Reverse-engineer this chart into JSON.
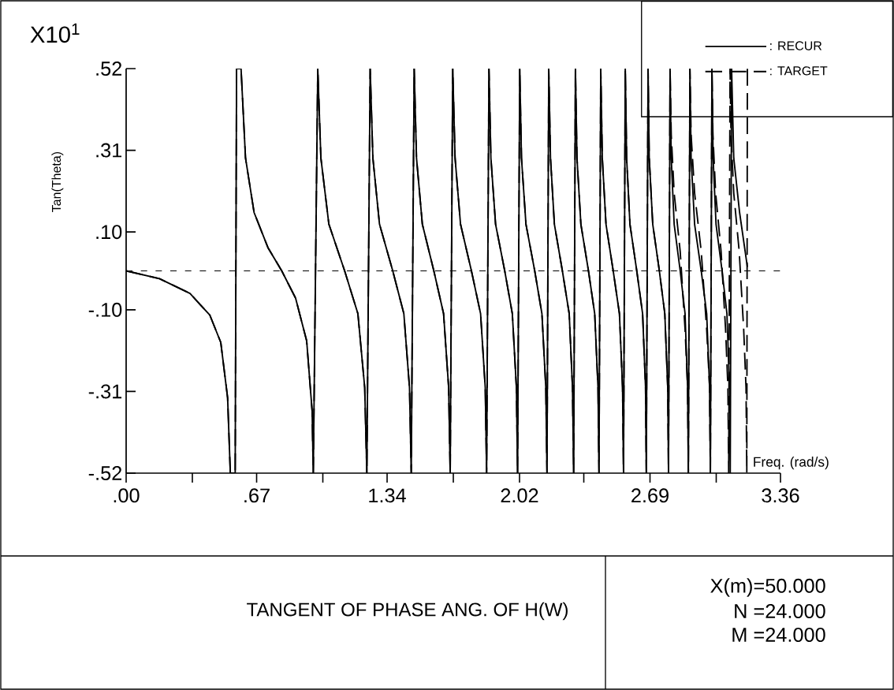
{
  "chart_data": {
    "type": "line",
    "title": "TANGENT OF PHASE ANG. OF H(W)",
    "xlabel": "Freq. (rad/s)",
    "ylabel": "Tan(Theta)",
    "annotations": [
      "X10$^{1}$",
      "X(m)=50.000",
      "N =24.000",
      "M =24.000"
    ],
    "xlim": [
      0,
      3.36
    ],
    "ylim": [
      -0.52,
      0.52
    ],
    "xticks": [
      {
        "value": 0,
        "label": ".00"
      },
      {
        "value": 0.34,
        "label": null
      },
      {
        "value": 0.67,
        "label": ".67"
      },
      {
        "value": 1.01,
        "label": null
      },
      {
        "value": 1.34,
        "label": "1.34"
      },
      {
        "value": 1.68,
        "label": null
      },
      {
        "value": 2.02,
        "label": "2.02"
      },
      {
        "value": 2.35,
        "label": null
      },
      {
        "value": 2.69,
        "label": "2.69"
      },
      {
        "value": 3.03,
        "label": null
      },
      {
        "value": 3.36,
        "label": "3.36"
      }
    ],
    "yticks": [
      {
        "value": -0.52,
        "label": "-.52"
      },
      {
        "value": -0.31,
        "label": "-.31"
      },
      {
        "value": -0.1,
        "label": "-.10"
      },
      {
        "value": 0.1,
        "label": ".10"
      },
      {
        "value": 0.31,
        "label": ".31"
      },
      {
        "value": 0.52,
        "label": ".52"
      }
    ],
    "ref_lines": [
      {
        "axis": "y",
        "value": 0,
        "line_style": "dashed",
        "color": "#000000"
      }
    ],
    "legend": "top right",
    "marker": "none",
    "series": [
      {
        "name": ": RECUR",
        "color": "#000000",
        "line_style": "solid",
        "x": [
          0,
          0.171,
          0.328,
          0.43,
          0.486,
          0.521,
          0.535,
          0.56,
          0.567,
          0.59,
          0.613,
          0.657,
          0.728,
          0.799,
          0.87,
          0.927,
          0.955,
          0.961,
          0.984,
          1.0,
          1.041,
          1.122,
          1.19,
          1.225,
          1.236,
          1.253,
          1.267,
          1.301,
          1.369,
          1.426,
          1.455,
          1.464,
          1.479,
          1.491,
          1.521,
          1.58,
          1.63,
          1.656,
          1.664,
          1.677,
          1.689,
          1.717,
          1.773,
          1.82,
          1.844,
          1.851,
          1.863,
          1.873,
          1.897,
          1.944,
          1.983,
          2.004,
          2.01,
          2.021,
          2.03,
          2.053,
          2.098,
          2.135,
          2.155,
          2.161,
          2.17,
          2.179,
          2.199,
          2.24,
          2.275,
          2.292,
          2.298,
          2.307,
          2.315,
          2.335,
          2.374,
          2.406,
          2.423,
          2.428,
          2.437,
          2.445,
          2.464,
          2.501,
          2.533,
          2.549,
          2.554,
          2.563,
          2.57,
          2.587,
          2.622,
          2.652,
          2.667,
          2.671,
          2.68,
          2.686,
          2.704,
          2.738,
          2.766,
          2.781,
          2.785,
          2.793,
          2.799,
          2.814,
          2.845,
          2.87,
          2.883,
          2.887,
          2.895,
          2.901,
          2.919,
          2.953,
          2.981,
          2.996,
          3.0,
          3.008,
          3.014,
          3.029,
          3.06,
          3.085,
          3.098,
          3.102,
          3.109,
          3.12,
          3.15,
          3.19
        ],
        "values": [
          0,
          -0.02,
          -0.058,
          -0.114,
          -0.184,
          -0.326,
          -0.52,
          -0.52,
          0.52,
          0.52,
          0.29,
          0.15,
          0.06,
          0,
          -0.07,
          -0.18,
          -0.36,
          -0.52,
          0.52,
          0.29,
          0.12,
          0,
          -0.11,
          -0.3,
          -0.52,
          0.52,
          0.29,
          0.12,
          0,
          -0.11,
          -0.3,
          -0.52,
          0.52,
          0.29,
          0.12,
          0,
          -0.11,
          -0.3,
          -0.52,
          0.52,
          0.29,
          0.12,
          0,
          -0.11,
          -0.3,
          -0.52,
          0.52,
          0.29,
          0.12,
          0,
          -0.11,
          -0.3,
          -0.52,
          0.52,
          0.29,
          0.12,
          0,
          -0.11,
          -0.3,
          -0.52,
          0.52,
          0.29,
          0.12,
          0,
          -0.11,
          -0.3,
          -0.52,
          0.52,
          0.29,
          0.12,
          0,
          -0.11,
          -0.3,
          -0.52,
          0.52,
          0.29,
          0.12,
          0,
          -0.11,
          -0.3,
          -0.52,
          0.52,
          0.29,
          0.12,
          0,
          -0.11,
          -0.3,
          -0.52,
          0.52,
          0.29,
          0.12,
          0,
          -0.11,
          -0.3,
          -0.52,
          0.52,
          0.29,
          0.12,
          0,
          -0.11,
          -0.3,
          -0.52,
          0.52,
          0.29,
          0.12,
          0,
          -0.11,
          -0.3,
          -0.52,
          0.52,
          0.29,
          0.12,
          0,
          -0.11,
          -0.3,
          -0.52,
          0.52,
          0.29,
          0.15,
          0.01
        ]
      },
      {
        "name": ": TARGET",
        "color": "#000000",
        "line_style": "dashed",
        "x": [
          0,
          0.171,
          0.328,
          0.43,
          0.486,
          0.521,
          0.535,
          0.56,
          0.567,
          0.59,
          0.613,
          0.657,
          0.728,
          0.799,
          0.87,
          0.927,
          0.955,
          0.961,
          0.984,
          1.0,
          1.041,
          1.122,
          1.19,
          1.225,
          1.236,
          1.253,
          1.267,
          1.301,
          1.369,
          1.426,
          1.455,
          1.464,
          1.479,
          1.491,
          1.521,
          1.58,
          1.63,
          1.656,
          1.664,
          1.677,
          1.689,
          1.717,
          1.773,
          1.82,
          1.844,
          1.851,
          1.863,
          1.873,
          1.897,
          1.944,
          1.983,
          2.004,
          2.01,
          2.021,
          2.03,
          2.053,
          2.098,
          2.135,
          2.155,
          2.161,
          2.17,
          2.179,
          2.199,
          2.24,
          2.275,
          2.292,
          2.298,
          2.307,
          2.315,
          2.335,
          2.374,
          2.406,
          2.423,
          2.428,
          2.437,
          2.445,
          2.464,
          2.501,
          2.533,
          2.549,
          2.554,
          2.563,
          2.57,
          2.587,
          2.622,
          2.652,
          2.667,
          2.671,
          2.68,
          2.686,
          2.704,
          2.738,
          2.766,
          2.781,
          2.785,
          2.793,
          2.799,
          2.814,
          2.845,
          2.87,
          2.883,
          2.887,
          2.895,
          2.901,
          2.919,
          2.953,
          2.981,
          2.996,
          3.0,
          3.008,
          3.013,
          3.027,
          3.055,
          3.078,
          3.09,
          3.094,
          3.101,
          3.106,
          3.12,
          3.148,
          3.171,
          3.183,
          3.187,
          3.19
        ],
        "values": [
          0,
          -0.02,
          -0.058,
          -0.114,
          -0.184,
          -0.326,
          -0.52,
          -0.52,
          0.52,
          0.52,
          0.29,
          0.15,
          0.06,
          0,
          -0.07,
          -0.18,
          -0.36,
          -0.52,
          0.52,
          0.29,
          0.12,
          0,
          -0.11,
          -0.3,
          -0.52,
          0.52,
          0.29,
          0.12,
          0,
          -0.11,
          -0.3,
          -0.52,
          0.52,
          0.29,
          0.12,
          0,
          -0.11,
          -0.3,
          -0.52,
          0.52,
          0.29,
          0.12,
          0,
          -0.11,
          -0.3,
          -0.52,
          0.52,
          0.29,
          0.12,
          0,
          -0.11,
          -0.3,
          -0.52,
          0.52,
          0.29,
          0.12,
          0,
          -0.11,
          -0.3,
          -0.52,
          0.52,
          0.29,
          0.12,
          0,
          -0.11,
          -0.3,
          -0.52,
          0.52,
          0.29,
          0.12,
          0,
          -0.11,
          -0.3,
          -0.52,
          0.52,
          0.29,
          0.12,
          0,
          -0.11,
          -0.3,
          -0.52,
          0.52,
          0.29,
          0.12,
          0,
          -0.11,
          -0.3,
          -0.52,
          0.52,
          0.29,
          0.12,
          0,
          -0.11,
          -0.3,
          -0.52,
          0.52,
          0.35,
          0.2,
          0.05,
          -0.15,
          -0.3,
          -0.52,
          0.52,
          0.35,
          0.2,
          0.05,
          -0.15,
          -0.3,
          -0.52,
          0.52,
          0.35,
          0.2,
          0.05,
          -0.15,
          -0.3,
          -0.52,
          0.52,
          0.35,
          0.2,
          0.05,
          -0.15,
          -0.3,
          -0.52,
          0.52
        ]
      }
    ]
  }
}
